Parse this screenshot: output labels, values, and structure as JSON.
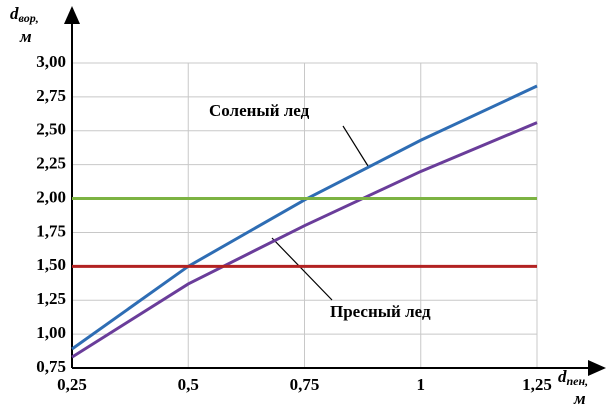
{
  "chart_data": {
    "type": "line",
    "ylabel": {
      "main": "d",
      "sub": "вор,",
      "unit": "м"
    },
    "xlabel": {
      "main": "d",
      "sub": "пен,",
      "unit": "м"
    },
    "x": [
      0.25,
      0.5,
      0.75,
      1,
      1.25
    ],
    "series": [
      {
        "name": "Соленый лед",
        "color": "#2e6db4",
        "values": [
          0.89,
          1.5,
          1.99,
          2.43,
          2.83
        ]
      },
      {
        "name": "Пресный лед",
        "color": "#6a3d9a",
        "values": [
          0.83,
          1.37,
          1.8,
          2.2,
          2.56
        ]
      },
      {
        "color": "#7cb342",
        "values": [
          2.0,
          2.0,
          2.0,
          2.0,
          2.0
        ]
      },
      {
        "color": "#b22222",
        "values": [
          1.5,
          1.5,
          1.5,
          1.5,
          1.5
        ]
      }
    ],
    "xlim": [
      0.25,
      1.25
    ],
    "xticks": [
      {
        "value": 0.25,
        "label": "0,25"
      },
      {
        "value": 0.5,
        "label": "0,5"
      },
      {
        "value": 0.75,
        "label": "0,75"
      },
      1,
      {
        "value": 1.25,
        "label": "1,25"
      }
    ],
    "ylim": [
      0.75,
      3.0
    ],
    "yticks": [
      {
        "value": 0.75,
        "label": "0,75"
      },
      {
        "value": 1.0,
        "label": "1,00"
      },
      {
        "value": 1.25,
        "label": "1,25"
      },
      {
        "value": 1.5,
        "label": "1,50"
      },
      {
        "value": 1.75,
        "label": "1,75"
      },
      {
        "value": 2.0,
        "label": "2,00"
      },
      {
        "value": 2.25,
        "label": "2,25"
      },
      {
        "value": 2.5,
        "label": "2,50"
      },
      {
        "value": 2.75,
        "label": "2,75"
      },
      {
        "value": 3.0,
        "label": "3,00"
      }
    ],
    "grid": true
  }
}
